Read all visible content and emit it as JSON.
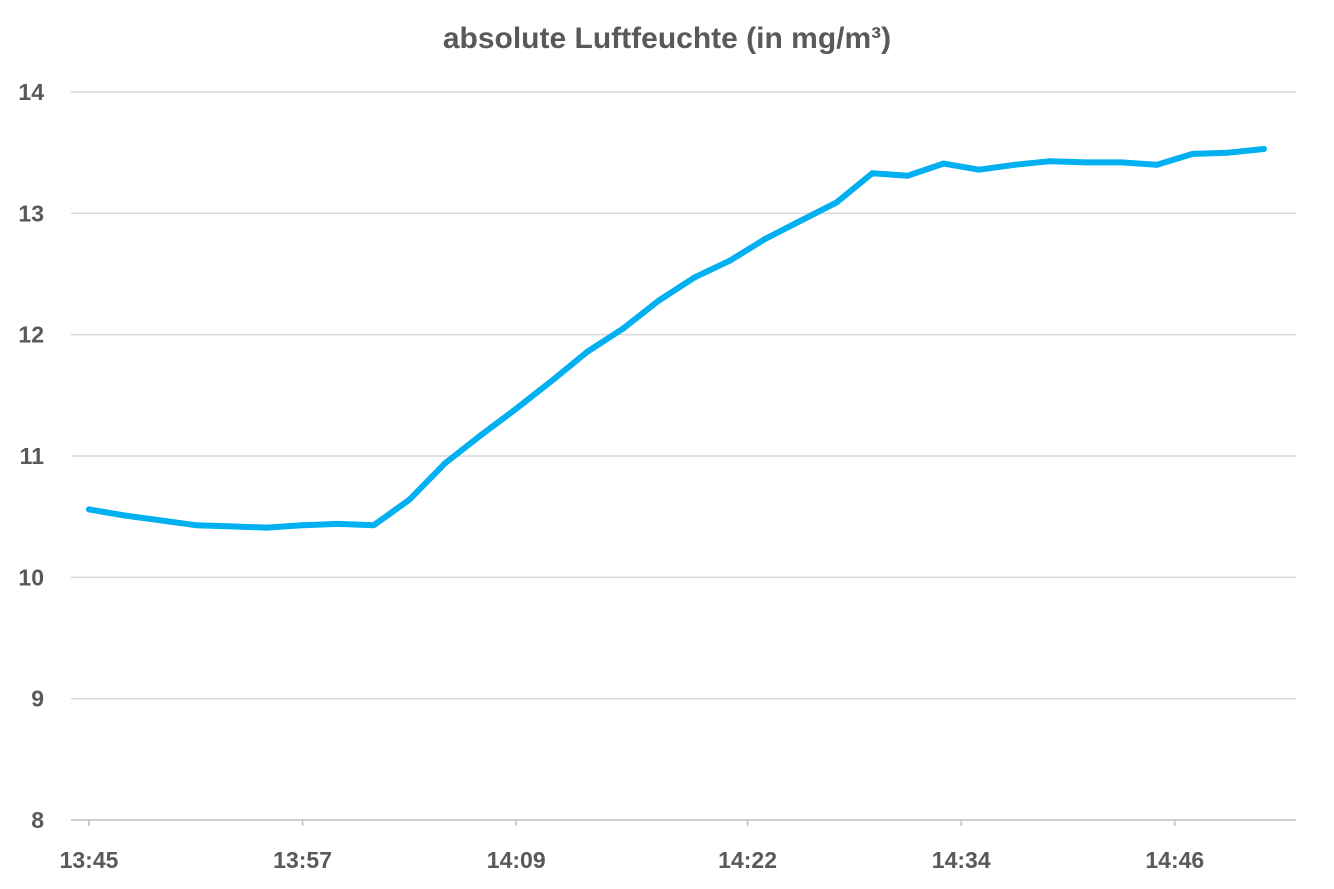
{
  "chart_data": {
    "type": "line",
    "title": "absolute Luftfeuchte (in mg/m³)",
    "xlabel": "",
    "ylabel": "",
    "ylim": [
      8,
      14
    ],
    "y_ticks": [
      "8",
      "9",
      "10",
      "11",
      "12",
      "13",
      "14"
    ],
    "x_tick_labels": [
      "13:45",
      "13:57",
      "14:09",
      "14:22",
      "14:34",
      "14:46"
    ],
    "grid": true,
    "legend": "none",
    "series": [
      {
        "color": "#00b0f0",
        "x": [
          "13:45",
          "13:47",
          "13:49",
          "13:51",
          "13:53",
          "13:55",
          "13:57",
          "13:59",
          "14:01",
          "14:03",
          "14:05",
          "14:07",
          "14:09",
          "14:11",
          "14:13",
          "14:15",
          "14:17",
          "14:19",
          "14:21",
          "14:23",
          "14:25",
          "14:27",
          "14:29",
          "14:31",
          "14:33",
          "14:35",
          "14:37",
          "14:39",
          "14:41",
          "14:43",
          "14:45",
          "14:47",
          "14:49",
          "14:51"
        ],
        "values": [
          10.56,
          10.51,
          10.47,
          10.43,
          10.42,
          10.41,
          10.43,
          10.44,
          10.43,
          10.64,
          10.94,
          11.17,
          11.39,
          11.62,
          11.86,
          12.05,
          12.28,
          12.47,
          12.61,
          12.79,
          12.94,
          13.09,
          13.33,
          13.31,
          13.41,
          13.36,
          13.4,
          13.43,
          13.42,
          13.42,
          13.4,
          13.49,
          13.5,
          13.53
        ]
      }
    ]
  }
}
